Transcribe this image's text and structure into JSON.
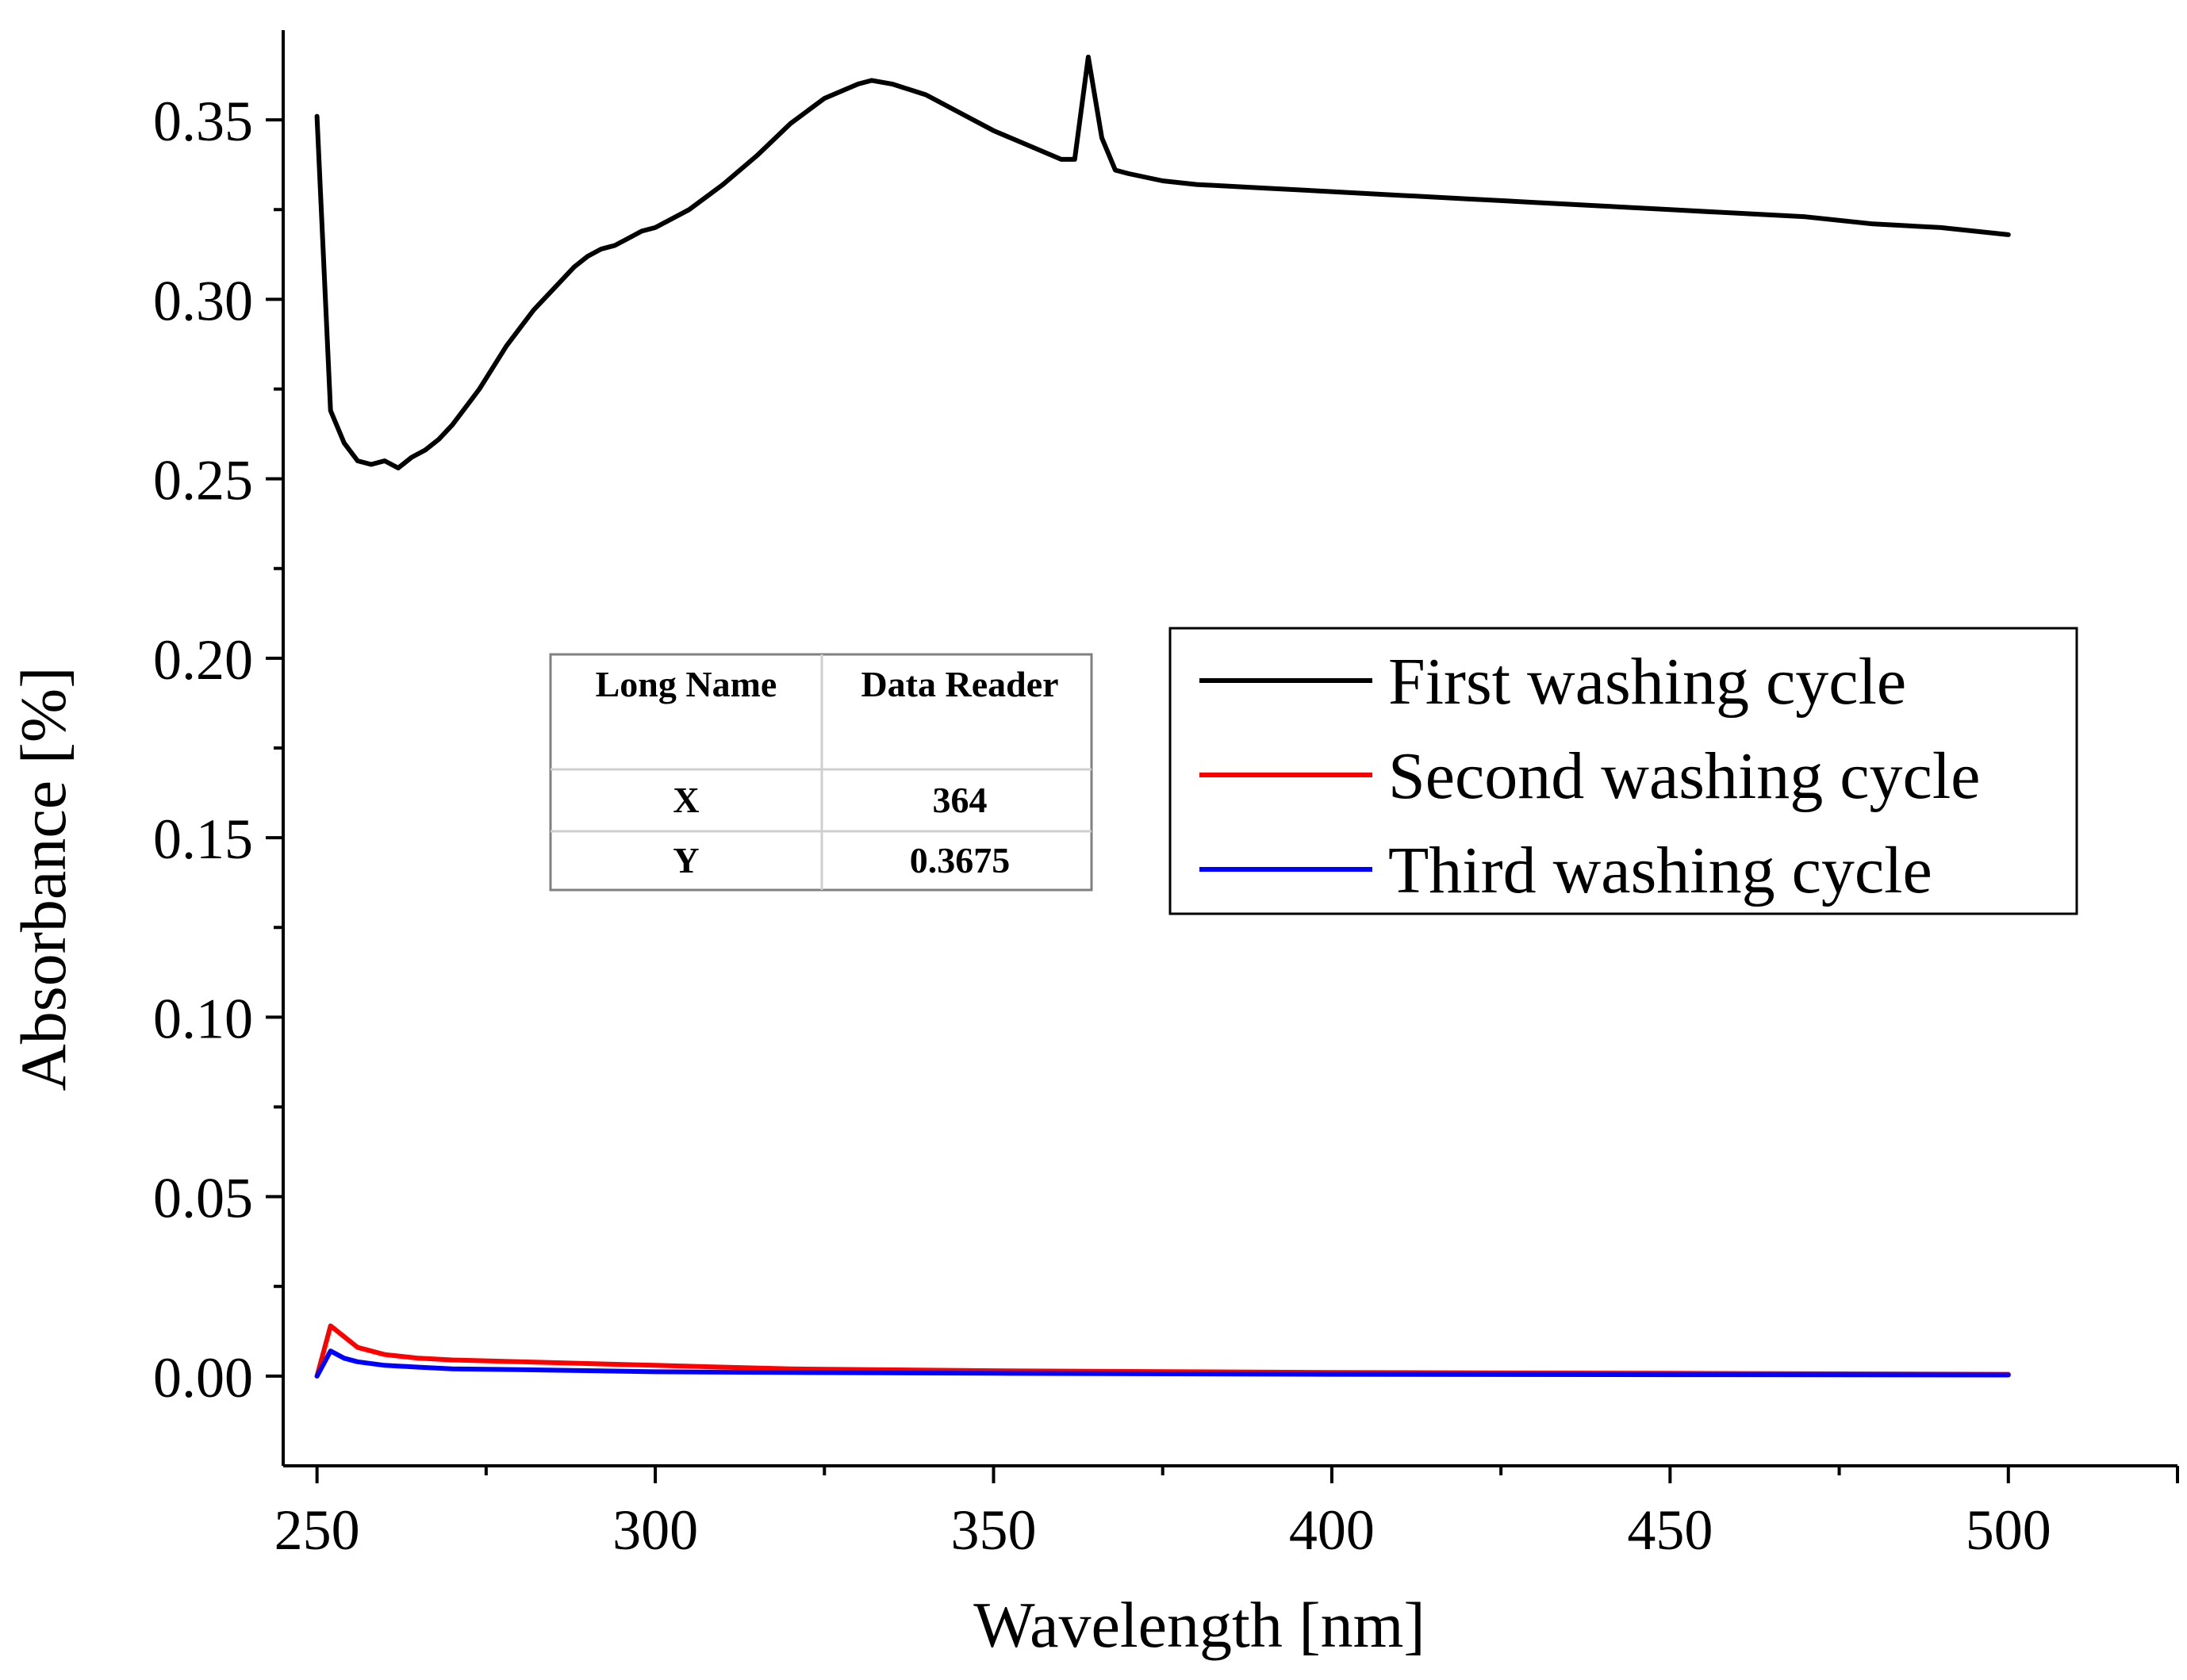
{
  "chart_data": {
    "type": "line",
    "title": "",
    "xlabel": "Wavelength [nm]",
    "ylabel": "Absorbance [%]",
    "xlim": [
      245,
      525
    ],
    "ylim": [
      -0.025,
      0.375
    ],
    "xticks": [
      250,
      300,
      350,
      400,
      450,
      500
    ],
    "xtick_labels": [
      "250",
      "300",
      "350",
      "400",
      "450",
      "500"
    ],
    "yticks": [
      0.0,
      0.05,
      0.1,
      0.15,
      0.2,
      0.25,
      0.3,
      0.35
    ],
    "ytick_labels": [
      "0.00",
      "0.05",
      "0.10",
      "0.15",
      "0.20",
      "0.25",
      "0.30",
      "0.35"
    ],
    "grid": false,
    "legend_position": "right-middle",
    "series": [
      {
        "name": "First washing cycle",
        "color": "#000000",
        "x": [
          250,
          252,
          254,
          256,
          258,
          260,
          262,
          264,
          266,
          268,
          270,
          272,
          274,
          276,
          278,
          280,
          282,
          284,
          286,
          288,
          290,
          292,
          294,
          296,
          298,
          300,
          305,
          310,
          315,
          320,
          325,
          330,
          332,
          335,
          340,
          345,
          350,
          355,
          360,
          362,
          364,
          366,
          368,
          370,
          375,
          380,
          390,
          400,
          410,
          420,
          430,
          440,
          450,
          460,
          470,
          480,
          490,
          500
        ],
        "y": [
          0.351,
          0.269,
          0.26,
          0.255,
          0.254,
          0.255,
          0.253,
          0.256,
          0.258,
          0.261,
          0.265,
          0.27,
          0.275,
          0.281,
          0.287,
          0.292,
          0.297,
          0.301,
          0.305,
          0.309,
          0.312,
          0.314,
          0.315,
          0.317,
          0.319,
          0.32,
          0.325,
          0.332,
          0.34,
          0.349,
          0.356,
          0.36,
          0.361,
          0.36,
          0.357,
          0.352,
          0.347,
          0.343,
          0.339,
          0.339,
          0.3675,
          0.345,
          0.336,
          0.335,
          0.333,
          0.332,
          0.331,
          0.33,
          0.329,
          0.328,
          0.327,
          0.326,
          0.325,
          0.324,
          0.323,
          0.321,
          0.32,
          0.318
        ]
      },
      {
        "name": "Second washing cycle",
        "color": "#ff0000",
        "x": [
          250,
          252,
          254,
          256,
          260,
          265,
          270,
          280,
          300,
          320,
          350,
          400,
          450,
          500
        ],
        "y": [
          0.0,
          0.014,
          0.011,
          0.008,
          0.006,
          0.005,
          0.0045,
          0.004,
          0.003,
          0.002,
          0.0015,
          0.001,
          0.0008,
          0.0005
        ]
      },
      {
        "name": "Third washing cycle",
        "color": "#0000ff",
        "x": [
          250,
          252,
          254,
          256,
          260,
          265,
          270,
          280,
          300,
          320,
          350,
          400,
          450,
          500
        ],
        "y": [
          0.0,
          0.007,
          0.005,
          0.004,
          0.003,
          0.0025,
          0.002,
          0.0018,
          0.0012,
          0.001,
          0.0008,
          0.0005,
          0.0004,
          0.0003
        ]
      }
    ],
    "annotations": [
      {
        "type": "table",
        "headers": [
          "Long Name",
          "Data Reader"
        ],
        "rows": [
          [
            "X",
            "364"
          ],
          [
            "Y",
            "0.3675"
          ]
        ]
      }
    ]
  }
}
